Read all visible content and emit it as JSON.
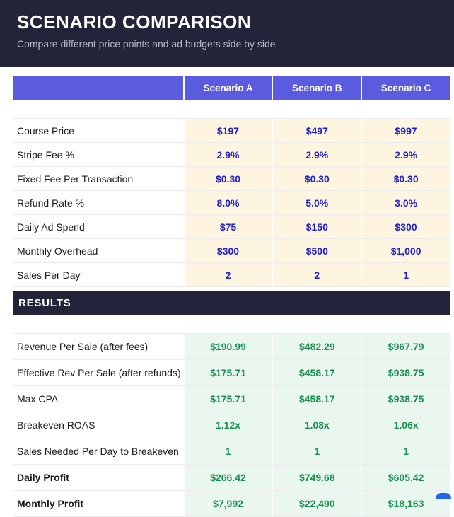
{
  "header": {
    "title": "SCENARIO COMPARISON",
    "subtitle": "Compare different price points and ad budgets side by side"
  },
  "table": {
    "columns": [
      "Scenario A",
      "Scenario B",
      "Scenario C"
    ],
    "inputs": [
      {
        "label": "Course Price",
        "values": [
          "$197",
          "$497",
          "$997"
        ]
      },
      {
        "label": "Stripe Fee %",
        "values": [
          "2.9%",
          "2.9%",
          "2.9%"
        ]
      },
      {
        "label": "Fixed Fee Per Transaction",
        "values": [
          "$0.30",
          "$0.30",
          "$0.30"
        ]
      },
      {
        "label": "Refund Rate %",
        "values": [
          "8.0%",
          "5.0%",
          "3.0%"
        ]
      },
      {
        "label": "Daily Ad Spend",
        "values": [
          "$75",
          "$150",
          "$300"
        ]
      },
      {
        "label": "Monthly Overhead",
        "values": [
          "$300",
          "$500",
          "$1,000"
        ]
      },
      {
        "label": "Sales Per Day",
        "values": [
          "2",
          "2",
          "1"
        ]
      }
    ],
    "results_header": "RESULTS",
    "results": [
      {
        "label": "Revenue Per Sale (after fees)",
        "values": [
          "$190.99",
          "$482.29",
          "$967.79"
        ],
        "bold": false
      },
      {
        "label": "Effective Rev Per Sale (after refunds)",
        "values": [
          "$175.71",
          "$458.17",
          "$938.75"
        ],
        "bold": false
      },
      {
        "label": "Max CPA",
        "values": [
          "$175.71",
          "$458.17",
          "$938.75"
        ],
        "bold": false
      },
      {
        "label": "Breakeven ROAS",
        "values": [
          "1.12x",
          "1.08x",
          "1.06x"
        ],
        "bold": false
      },
      {
        "label": "Sales Needed Per Day to Breakeven",
        "values": [
          "1",
          "1",
          "1"
        ],
        "bold": false
      },
      {
        "label": "Daily Profit",
        "values": [
          "$266.42",
          "$749.68",
          "$605.42"
        ],
        "bold": true
      },
      {
        "label": "Monthly Profit",
        "values": [
          "$7,992",
          "$22,490",
          "$18,163"
        ],
        "bold": true
      }
    ]
  },
  "colors": {
    "banner_dark": "#23233a",
    "header_purple": "#5b5be0",
    "input_value_blue": "#1f1fd0",
    "input_cell_cream": "#fdf5df",
    "result_value_green": "#1a9150",
    "result_cell_green": "#e9f7ef",
    "floating_handle_blue": "#2563eb"
  }
}
